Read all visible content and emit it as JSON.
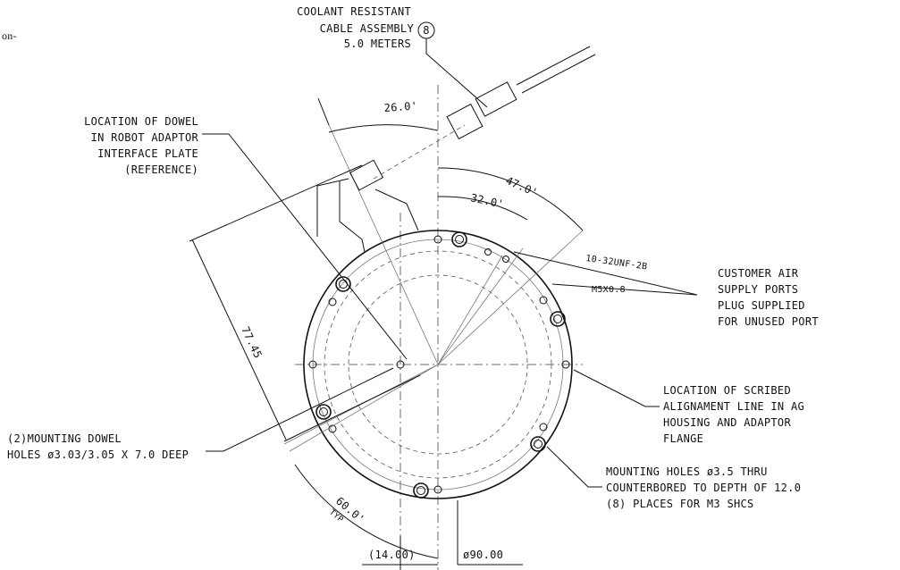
{
  "fragment": "on-",
  "cable": {
    "lines": [
      "COOLANT RESISTANT",
      "CABLE ASSEMBLY",
      "5.0 METERS"
    ],
    "item": "8"
  },
  "dowel_location": {
    "lines": [
      "LOCATION OF DOWEL",
      "IN ROBOT ADAPTOR",
      "INTERFACE PLATE",
      "(REFERENCE)"
    ]
  },
  "air_ports": {
    "threads": [
      "10-32UNF-2B",
      "M5X0.8"
    ],
    "lines": [
      "CUSTOMER AIR",
      "SUPPLY PORTS",
      "PLUG SUPPLIED",
      "FOR UNUSED PORT"
    ]
  },
  "scribed_line": {
    "lines": [
      "LOCATION OF SCRIBED",
      "ALIGNAMENT LINE IN AG",
      "HOUSING AND ADAPTOR",
      "FLANGE"
    ]
  },
  "dowel_holes": {
    "lines": [
      "(2)MOUNTING DOWEL",
      "HOLES ø3.03/3.05 X 7.0 DEEP"
    ]
  },
  "mounting_holes": {
    "lines": [
      "MOUNTING HOLES ø3.5 THRU",
      "COUNTERBORED TO DEPTH OF 12.0",
      "(8) PLACES FOR M3 SHCS"
    ]
  },
  "dimensions": {
    "angle_dowel": "26.0'",
    "angle_47": "47.0'",
    "angle_32": "32.0'",
    "length": "77.45",
    "angle_typ": "60.0'",
    "typ": "TYP",
    "offset": "(14.00)",
    "diameter": "ø90.00"
  }
}
